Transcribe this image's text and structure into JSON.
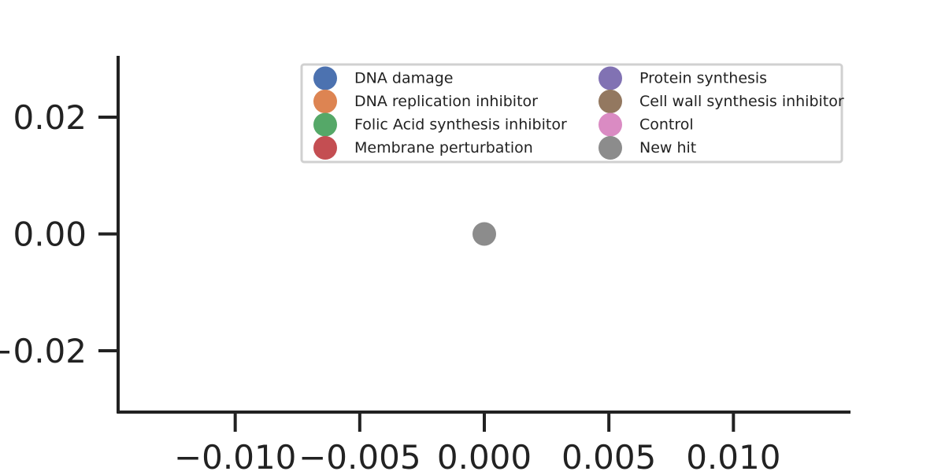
{
  "chart_data": {
    "type": "scatter",
    "title": "",
    "xlabel": "",
    "ylabel": "",
    "xlim": [
      -0.0147,
      0.0147
    ],
    "ylim": [
      -0.0305,
      0.0305
    ],
    "x_ticks": [
      -0.01,
      -0.005,
      0.0,
      0.005,
      0.01
    ],
    "x_tick_labels": [
      "−0.010",
      "−0.005",
      "0.000",
      "0.005",
      "0.010"
    ],
    "y_ticks": [
      0.02,
      0.0,
      -0.02
    ],
    "y_tick_labels": [
      "0.02",
      "0.00",
      "−0.02"
    ],
    "grid": false,
    "legend_placement": "top-right",
    "legend_columns": 2,
    "series": [
      {
        "name": "DNA damage",
        "color": "#4C72B0",
        "points": []
      },
      {
        "name": "DNA replication inhibitor",
        "color": "#DD8452",
        "points": []
      },
      {
        "name": "Folic Acid synthesis inhibitor",
        "color": "#55A868",
        "points": []
      },
      {
        "name": "Membrane perturbation",
        "color": "#C44E52",
        "points": []
      },
      {
        "name": "Protein synthesis",
        "color": "#8172B3",
        "points": []
      },
      {
        "name": "Cell wall synthesis inhibitor",
        "color": "#937860",
        "points": []
      },
      {
        "name": "Control",
        "color": "#DA8BC3",
        "points": []
      },
      {
        "name": "New hit",
        "color": "#8C8C8C",
        "points": [
          [
            0.0,
            0.0
          ]
        ]
      }
    ]
  }
}
